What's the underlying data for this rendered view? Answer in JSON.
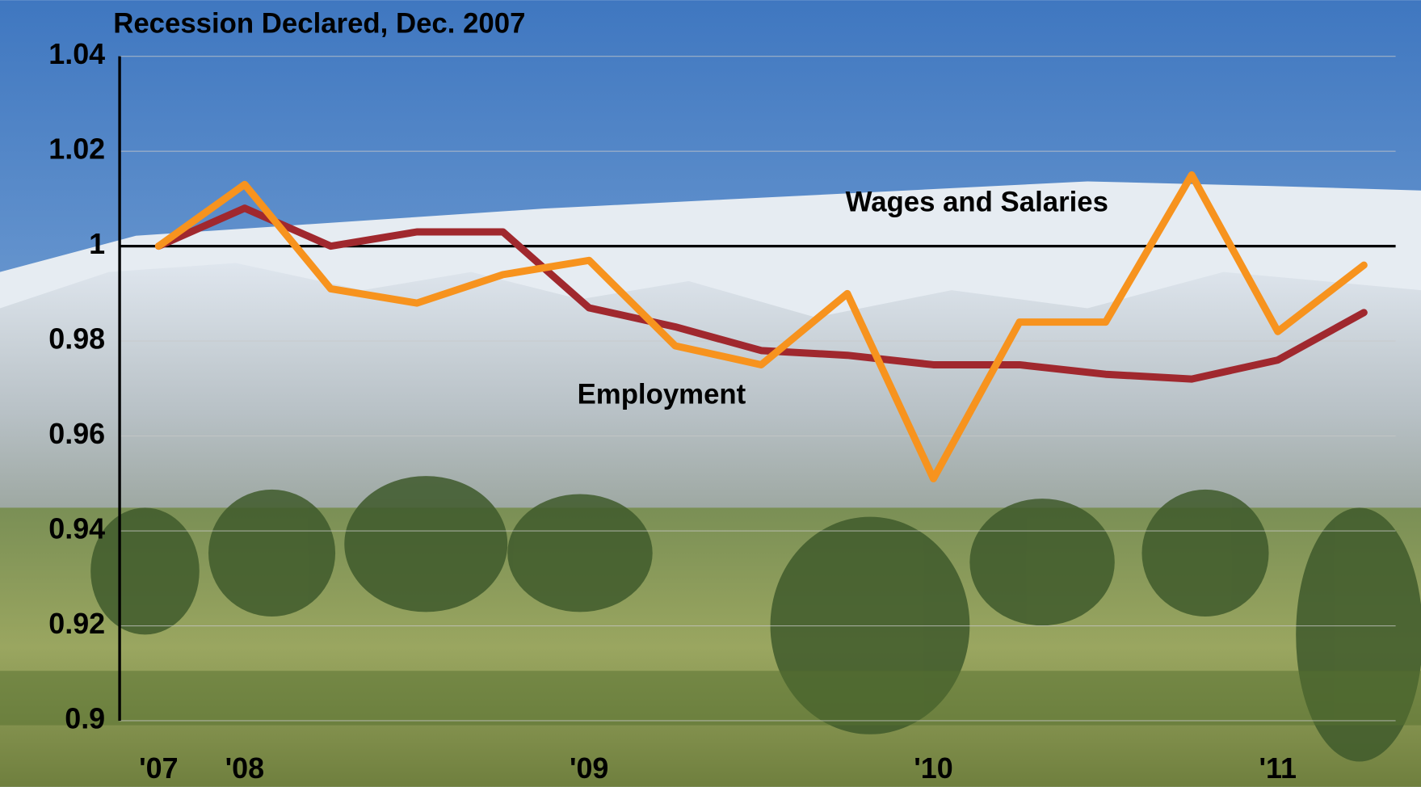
{
  "chart_data": {
    "type": "line",
    "title": "Recession Declared, Dec. 2007",
    "categories": [
      "'07",
      "'08",
      null,
      null,
      null,
      "'09",
      null,
      null,
      null,
      "'10",
      null,
      null,
      null,
      "'11",
      null
    ],
    "series": [
      {
        "name": "Wages and Salaries",
        "color": "#f7931e",
        "values": [
          1.0,
          1.013,
          0.991,
          0.988,
          0.994,
          0.997,
          0.979,
          0.975,
          0.99,
          0.951,
          0.984,
          0.984,
          1.015,
          0.982,
          0.996
        ]
      },
      {
        "name": "Employment",
        "color": "#a0282e",
        "values": [
          1.0,
          1.008,
          1.0,
          1.003,
          1.003,
          0.987,
          0.983,
          0.978,
          0.977,
          0.975,
          0.975,
          0.973,
          0.972,
          0.976,
          0.986
        ]
      }
    ],
    "ylim": [
      0.9,
      1.04
    ],
    "yticks": [
      0.9,
      0.92,
      0.94,
      0.96,
      0.98,
      1,
      1.02,
      1.04
    ],
    "reference_line": 1,
    "grid": true
  }
}
